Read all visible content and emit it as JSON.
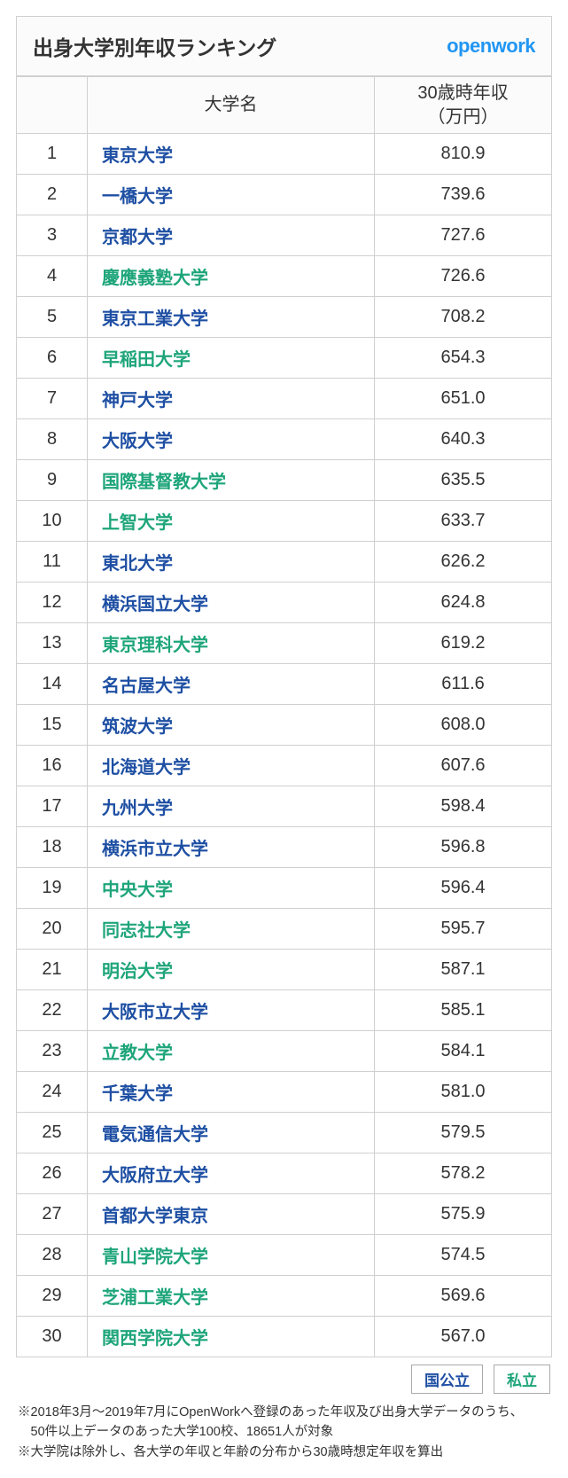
{
  "header": {
    "title": "出身大学別年収ランキング",
    "brand": "openwork"
  },
  "columns": {
    "rank": "",
    "university": "大学名",
    "income": "30歳時年収\n（万円）"
  },
  "colors": {
    "national": "#1e4fa3",
    "private": "#1ea57a",
    "border": "#d0d0d0",
    "header_bg": "#fbfbfb",
    "brand": "#2196f3"
  },
  "type_styles": {
    "national": "national",
    "private": "private"
  },
  "rows": [
    {
      "rank": 1,
      "name": "東京大学",
      "type": "national",
      "income": "810.9"
    },
    {
      "rank": 2,
      "name": "一橋大学",
      "type": "national",
      "income": "739.6"
    },
    {
      "rank": 3,
      "name": "京都大学",
      "type": "national",
      "income": "727.6"
    },
    {
      "rank": 4,
      "name": "慶應義塾大学",
      "type": "private",
      "income": "726.6"
    },
    {
      "rank": 5,
      "name": "東京工業大学",
      "type": "national",
      "income": "708.2"
    },
    {
      "rank": 6,
      "name": "早稲田大学",
      "type": "private",
      "income": "654.3"
    },
    {
      "rank": 7,
      "name": "神戸大学",
      "type": "national",
      "income": "651.0"
    },
    {
      "rank": 8,
      "name": "大阪大学",
      "type": "national",
      "income": "640.3"
    },
    {
      "rank": 9,
      "name": "国際基督教大学",
      "type": "private",
      "income": "635.5"
    },
    {
      "rank": 10,
      "name": "上智大学",
      "type": "private",
      "income": "633.7"
    },
    {
      "rank": 11,
      "name": "東北大学",
      "type": "national",
      "income": "626.2"
    },
    {
      "rank": 12,
      "name": "横浜国立大学",
      "type": "national",
      "income": "624.8"
    },
    {
      "rank": 13,
      "name": "東京理科大学",
      "type": "private",
      "income": "619.2"
    },
    {
      "rank": 14,
      "name": "名古屋大学",
      "type": "national",
      "income": "611.6"
    },
    {
      "rank": 15,
      "name": "筑波大学",
      "type": "national",
      "income": "608.0"
    },
    {
      "rank": 16,
      "name": "北海道大学",
      "type": "national",
      "income": "607.6"
    },
    {
      "rank": 17,
      "name": "九州大学",
      "type": "national",
      "income": "598.4"
    },
    {
      "rank": 18,
      "name": "横浜市立大学",
      "type": "national",
      "income": "596.8"
    },
    {
      "rank": 19,
      "name": "中央大学",
      "type": "private",
      "income": "596.4"
    },
    {
      "rank": 20,
      "name": "同志社大学",
      "type": "private",
      "income": "595.7"
    },
    {
      "rank": 21,
      "name": "明治大学",
      "type": "private",
      "income": "587.1"
    },
    {
      "rank": 22,
      "name": "大阪市立大学",
      "type": "national",
      "income": "585.1"
    },
    {
      "rank": 23,
      "name": "立教大学",
      "type": "private",
      "income": "584.1"
    },
    {
      "rank": 24,
      "name": "千葉大学",
      "type": "national",
      "income": "581.0"
    },
    {
      "rank": 25,
      "name": "電気通信大学",
      "type": "national",
      "income": "579.5"
    },
    {
      "rank": 26,
      "name": "大阪府立大学",
      "type": "national",
      "income": "578.2"
    },
    {
      "rank": 27,
      "name": "首都大学東京",
      "type": "national",
      "income": "575.9"
    },
    {
      "rank": 28,
      "name": "青山学院大学",
      "type": "private",
      "income": "574.5"
    },
    {
      "rank": 29,
      "name": "芝浦工業大学",
      "type": "private",
      "income": "569.6"
    },
    {
      "rank": 30,
      "name": "関西学院大学",
      "type": "private",
      "income": "567.0"
    }
  ],
  "legend": {
    "national": "国公立",
    "private": "私立"
  },
  "notes": [
    "※2018年3月～2019年7月にOpenWorkへ登録のあった年収及び出身大学データのうち、",
    "50件以上データのあった大学100校、18651人が対象",
    "※大学院は除外し、各大学の年収と年齢の分布から30歳時想定年収を算出"
  ]
}
